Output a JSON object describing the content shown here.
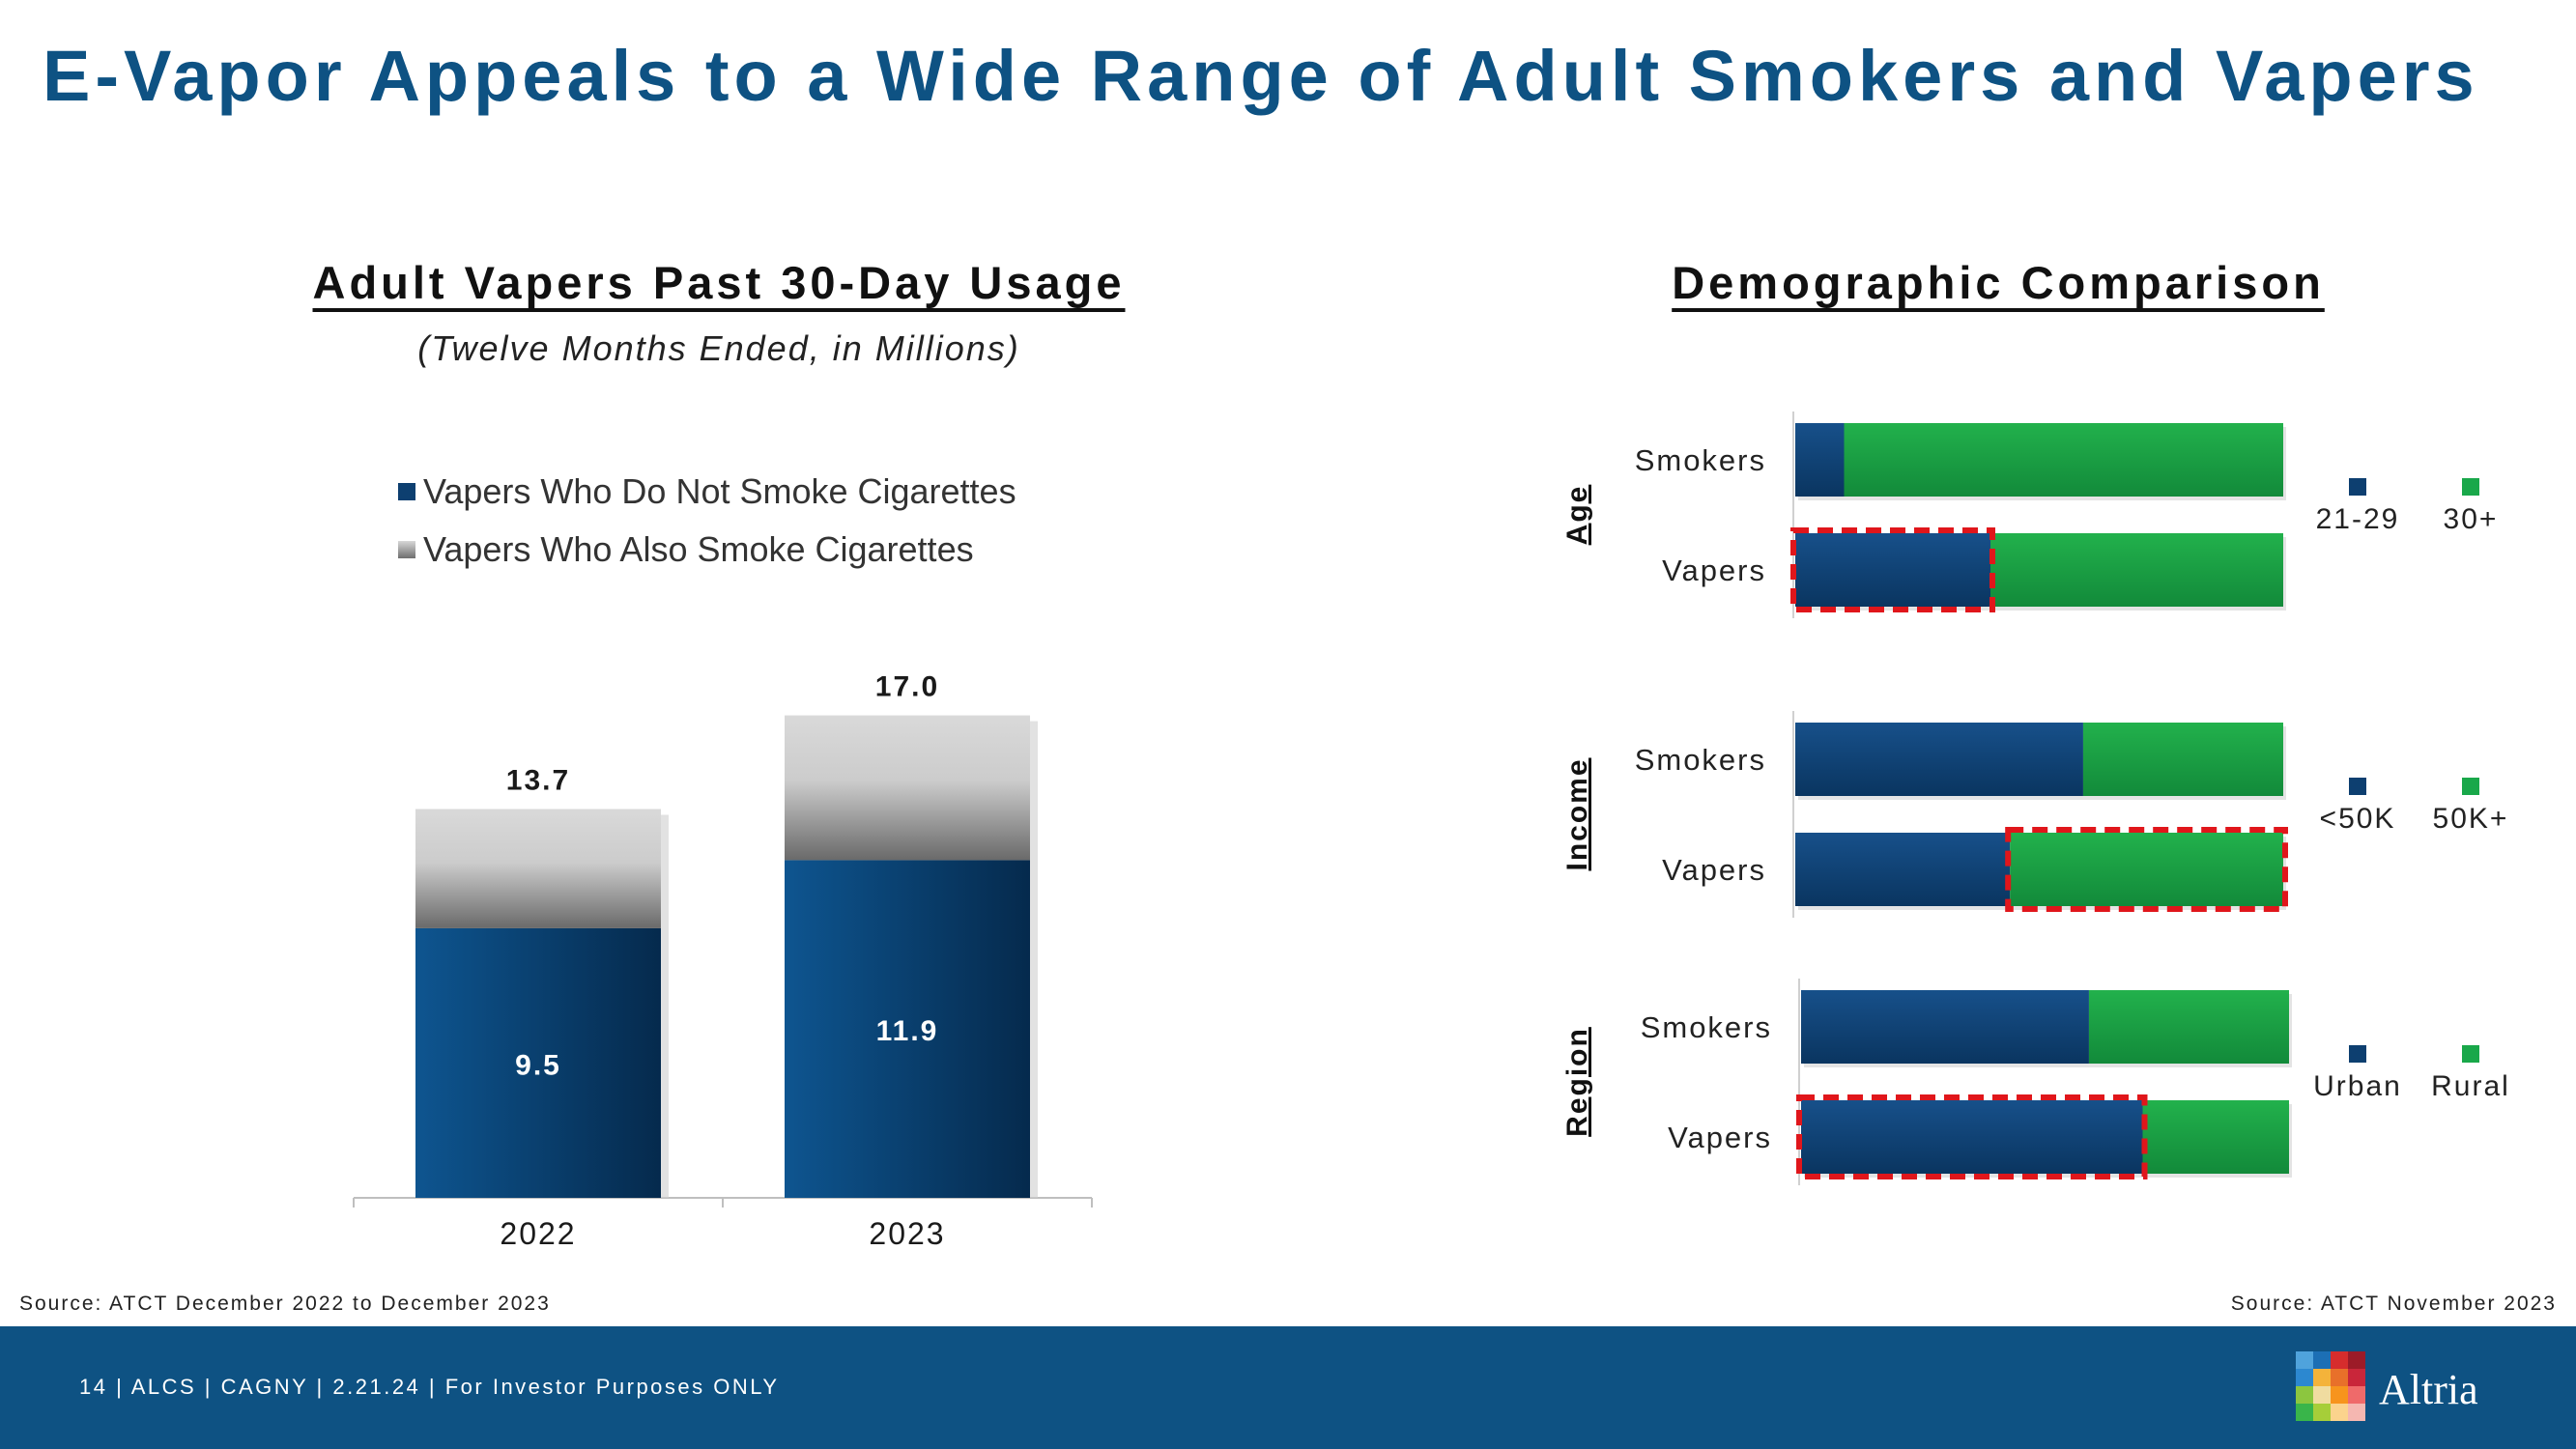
{
  "slide_title": "E-Vapor Appeals to a Wide Range of Adult Smokers and Vapers",
  "left_panel": {
    "title": "Adult Vapers Past 30-Day Usage",
    "subtitle": "(Twelve Months Ended, in Millions)",
    "legend": [
      "Vapers Who Do Not Smoke Cigarettes",
      "Vapers Who Also Smoke Cigarettes"
    ]
  },
  "right_panel": {
    "title": "Demographic Comparison"
  },
  "chart_data": [
    {
      "type": "bar",
      "stacked": true,
      "categories": [
        "2022",
        "2023"
      ],
      "series": [
        {
          "name": "Vapers Who Do Not Smoke Cigarettes",
          "values": [
            9.5,
            11.9
          ],
          "labels": [
            "9.5",
            "11.9"
          ],
          "color": "#0d3f70"
        },
        {
          "name": "Vapers Who Also Smoke Cigarettes",
          "values": [
            4.2,
            5.1
          ],
          "color": "#bdbdbd"
        }
      ],
      "totals": [
        13.7,
        17.0
      ],
      "total_labels": [
        "13.7",
        "17.0"
      ],
      "ylim": [
        0,
        17.7
      ],
      "grid": false,
      "legend_position": "top"
    },
    {
      "type": "bar",
      "orientation": "horizontal",
      "stacked": true,
      "percent": true,
      "groups": [
        {
          "name": "Age",
          "rows": [
            "Smokers",
            "Vapers"
          ],
          "legend": [
            "21-29",
            "30+"
          ],
          "first_share": [
            0.1,
            0.4
          ],
          "highlight": "Vapers",
          "highlight_segment": 0
        },
        {
          "name": "Income",
          "rows": [
            "Smokers",
            "Vapers"
          ],
          "legend": [
            "<50K",
            "50K+"
          ],
          "first_share": [
            0.59,
            0.44
          ],
          "highlight": "Vapers",
          "highlight_segment": 1
        },
        {
          "name": "Region",
          "rows": [
            "Smokers",
            "Vapers"
          ],
          "legend": [
            "Urban",
            "Rural"
          ],
          "first_share": [
            0.59,
            0.7
          ],
          "highlight": "Vapers",
          "highlight_segment": 0
        }
      ],
      "colors": [
        "#0d3f70",
        "#19a84a"
      ],
      "highlight_color": "#e0161b"
    }
  ],
  "sources": {
    "left": "Source: ATCT December 2022 to December 2023",
    "right": "Source: ATCT November 2023"
  },
  "footer": {
    "text": "14 | ALCS | CAGNY | 2.21.24 | For Investor Purposes ONLY",
    "logo_text": "Altria",
    "logo_name": "altria-mosaic-logo"
  }
}
